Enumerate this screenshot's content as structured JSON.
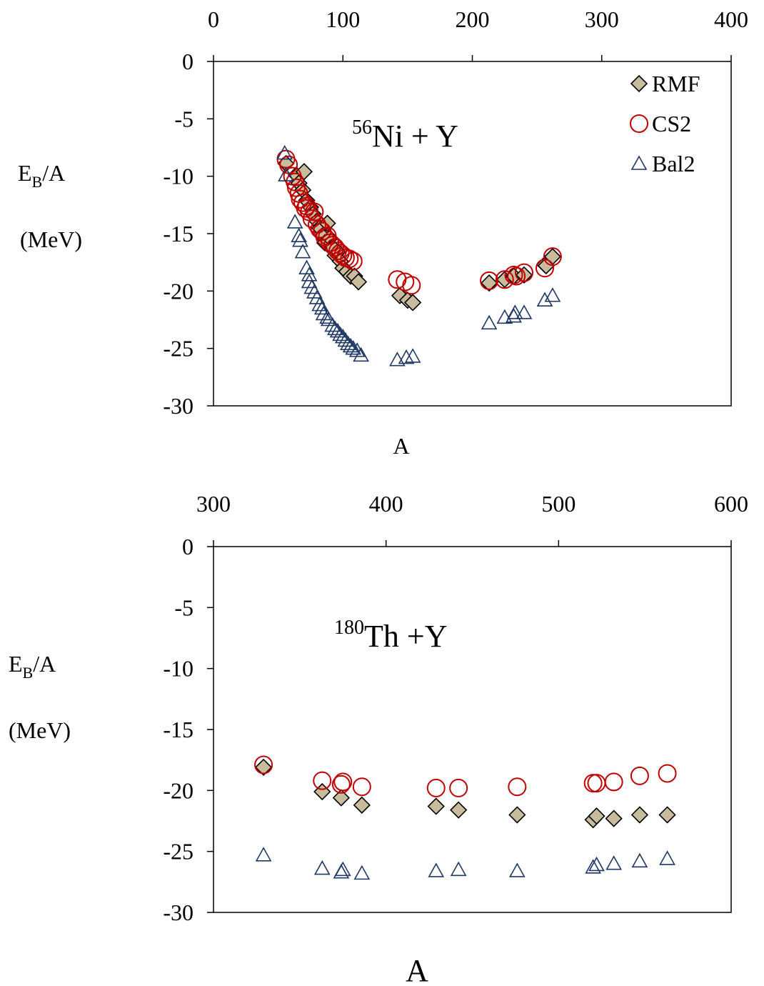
{
  "chart_data": [
    {
      "type": "scatter",
      "title": "",
      "annotation": {
        "sup": "56",
        "text": "Ni + Y"
      },
      "xlabel": "A",
      "ylabel_line1": {
        "main": "E",
        "sub": "B",
        "rest": "/A"
      },
      "ylabel_line2": "(MeV)",
      "xlim": [
        0,
        400
      ],
      "ylim": [
        -30,
        0
      ],
      "x_axis_position": "top",
      "x_ticks": [
        "0",
        "100",
        "200",
        "300",
        "400"
      ],
      "y_ticks": [
        "0",
        "-5",
        "-10",
        "-15",
        "-20",
        "-25",
        "-30"
      ],
      "grid": false,
      "legend": {
        "position": "top-right",
        "entries": [
          "RMF",
          "CS2",
          "Bal2"
        ]
      },
      "series": [
        {
          "name": "RMF",
          "marker": "diamond",
          "color": "#c9bc9c",
          "points": [
            [
              56,
              -8.9
            ],
            [
              64,
              -9.9
            ],
            [
              66,
              -10.6
            ],
            [
              69,
              -11.2
            ],
            [
              70,
              -9.6
            ],
            [
              72,
              -12.1
            ],
            [
              75,
              -12.7
            ],
            [
              77,
              -13.3
            ],
            [
              80,
              -13.9
            ],
            [
              82,
              -14.5
            ],
            [
              84,
              -15.2
            ],
            [
              86,
              -15.8
            ],
            [
              88,
              -14.1
            ],
            [
              90,
              -15.4
            ],
            [
              92,
              -16.2
            ],
            [
              94,
              -16.9
            ],
            [
              96,
              -16.6
            ],
            [
              98,
              -17.4
            ],
            [
              100,
              -18.0
            ],
            [
              103,
              -18.3
            ],
            [
              106,
              -18.7
            ],
            [
              109,
              -18.7
            ],
            [
              112,
              -19.2
            ],
            [
              144,
              -20.4
            ],
            [
              150,
              -20.8
            ],
            [
              154,
              -21.0
            ],
            [
              213,
              -19.3
            ],
            [
              225,
              -19.0
            ],
            [
              232,
              -18.7
            ],
            [
              240,
              -18.6
            ],
            [
              256,
              -17.7
            ],
            [
              257,
              -17.8
            ],
            [
              262,
              -17.0
            ]
          ]
        },
        {
          "name": "CS2",
          "marker": "circle",
          "color": "#c00000",
          "points": [
            [
              56,
              -8.5
            ],
            [
              58,
              -9.0
            ],
            [
              61,
              -10.0
            ],
            [
              63,
              -10.5
            ],
            [
              64,
              -11.0
            ],
            [
              66,
              -11.5
            ],
            [
              67,
              -12.0
            ],
            [
              69,
              -12.3
            ],
            [
              71,
              -12.8
            ],
            [
              72,
              -12.6
            ],
            [
              74,
              -13.1
            ],
            [
              76,
              -13.7
            ],
            [
              78,
              -13.1
            ],
            [
              80,
              -14.2
            ],
            [
              82,
              -14.6
            ],
            [
              84,
              -14.8
            ],
            [
              86,
              -15.3
            ],
            [
              88,
              -15.2
            ],
            [
              90,
              -15.8
            ],
            [
              92,
              -16.0
            ],
            [
              94,
              -16.2
            ],
            [
              96,
              -16.5
            ],
            [
              98,
              -16.7
            ],
            [
              100,
              -16.9
            ],
            [
              102,
              -17.1
            ],
            [
              105,
              -17.2
            ],
            [
              108,
              -17.4
            ],
            [
              142,
              -19.0
            ],
            [
              148,
              -19.2
            ],
            [
              153,
              -19.5
            ],
            [
              213,
              -19.1
            ],
            [
              225,
              -19.0
            ],
            [
              232,
              -18.6
            ],
            [
              234,
              -18.7
            ],
            [
              240,
              -18.4
            ],
            [
              256,
              -18.0
            ],
            [
              262,
              -17.0
            ]
          ]
        },
        {
          "name": "Bal2",
          "marker": "triangle",
          "color": "#1f3864",
          "points": [
            [
              55,
              -8.0
            ],
            [
              56,
              -9.9
            ],
            [
              63,
              -14.0
            ],
            [
              66,
              -15.2
            ],
            [
              67,
              -15.6
            ],
            [
              69,
              -16.6
            ],
            [
              72,
              -18.0
            ],
            [
              74,
              -18.6
            ],
            [
              74,
              -19.2
            ],
            [
              76,
              -19.7
            ],
            [
              78,
              -20.1
            ],
            [
              80,
              -20.6
            ],
            [
              82,
              -21.2
            ],
            [
              84,
              -21.5
            ],
            [
              85,
              -22.0
            ],
            [
              88,
              -22.3
            ],
            [
              89,
              -22.5
            ],
            [
              92,
              -23.0
            ],
            [
              94,
              -23.3
            ],
            [
              96,
              -23.5
            ],
            [
              98,
              -23.8
            ],
            [
              100,
              -24.0
            ],
            [
              102,
              -24.3
            ],
            [
              104,
              -24.6
            ],
            [
              106,
              -24.8
            ],
            [
              108,
              -25.0
            ],
            [
              111,
              -25.2
            ],
            [
              114,
              -25.6
            ],
            [
              142,
              -26.0
            ],
            [
              149,
              -25.8
            ],
            [
              154,
              -25.7
            ],
            [
              213,
              -22.8
            ],
            [
              225,
              -22.3
            ],
            [
              232,
              -22.2
            ],
            [
              233,
              -21.9
            ],
            [
              240,
              -21.9
            ],
            [
              256,
              -20.8
            ],
            [
              262,
              -20.4
            ]
          ]
        }
      ]
    },
    {
      "type": "scatter",
      "title": "",
      "annotation": {
        "sup": "180",
        "text": "Th +Y"
      },
      "xlabel": "A",
      "ylabel_line1": {
        "main": "E",
        "sub": "B",
        "rest": "/A"
      },
      "ylabel_line2": "(MeV)",
      "xlim": [
        300,
        600
      ],
      "ylim": [
        -30,
        0
      ],
      "x_axis_position": "top",
      "x_ticks": [
        "300",
        "400",
        "500",
        "600"
      ],
      "y_ticks": [
        "0",
        "-5",
        "-10",
        "-15",
        "-20",
        "-25",
        "-30"
      ],
      "grid": false,
      "legend": null,
      "series": [
        {
          "name": "RMF",
          "marker": "diamond",
          "color": "#c9bc9c",
          "points": [
            [
              329,
              -18.1
            ],
            [
              363,
              -20.1
            ],
            [
              374,
              -20.6
            ],
            [
              386,
              -21.2
            ],
            [
              429,
              -21.3
            ],
            [
              442,
              -21.6
            ],
            [
              476,
              -22.0
            ],
            [
              520,
              -22.4
            ],
            [
              522,
              -22.1
            ],
            [
              532,
              -22.3
            ],
            [
              547,
              -22.0
            ],
            [
              563,
              -22.0
            ]
          ]
        },
        {
          "name": "CS2",
          "marker": "circle",
          "color": "#c00000",
          "points": [
            [
              329,
              -17.9
            ],
            [
              363,
              -19.2
            ],
            [
              374,
              -19.5
            ],
            [
              375,
              -19.3
            ],
            [
              386,
              -19.7
            ],
            [
              429,
              -19.8
            ],
            [
              442,
              -19.8
            ],
            [
              476,
              -19.7
            ],
            [
              520,
              -19.4
            ],
            [
              522,
              -19.4
            ],
            [
              532,
              -19.3
            ],
            [
              547,
              -18.8
            ],
            [
              563,
              -18.6
            ]
          ]
        },
        {
          "name": "Bal2",
          "marker": "triangle",
          "color": "#1f3864",
          "points": [
            [
              329,
              -25.3
            ],
            [
              363,
              -26.4
            ],
            [
              374,
              -26.7
            ],
            [
              375,
              -26.5
            ],
            [
              386,
              -26.8
            ],
            [
              429,
              -26.6
            ],
            [
              442,
              -26.5
            ],
            [
              476,
              -26.6
            ],
            [
              520,
              -26.3
            ],
            [
              522,
              -26.1
            ],
            [
              532,
              -26.0
            ],
            [
              547,
              -25.8
            ],
            [
              563,
              -25.6
            ]
          ]
        }
      ]
    }
  ]
}
